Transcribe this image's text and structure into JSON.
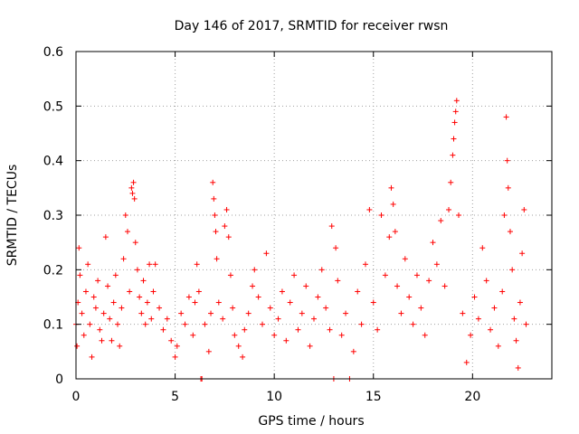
{
  "chart_data": {
    "type": "scatter",
    "title": "Day 146 of 2017, SRMTID for receiver rwsn",
    "xlabel": "GPS time / hours",
    "ylabel": "SRMTID / TECUs",
    "xlim": [
      0,
      24
    ],
    "ylim": [
      0,
      0.6
    ],
    "x_ticks": [
      0,
      5,
      10,
      15,
      20
    ],
    "x_tick_labels": [
      "0",
      "5",
      "10",
      "15",
      "20"
    ],
    "y_ticks": [
      0,
      0.1,
      0.2,
      0.3,
      0.4,
      0.5,
      0.6
    ],
    "y_tick_labels": [
      "0",
      "0.1",
      "0.2",
      "0.3",
      "0.4",
      "0.5",
      "0.6"
    ],
    "grid": true,
    "marker": "+",
    "color": "#ff0000",
    "data_x_range_hours": [
      0,
      22.7
    ],
    "typical_band": [
      0.05,
      0.2
    ],
    "series": [
      {
        "name": "SRMTID",
        "points": [
          [
            0.0,
            0.1
          ],
          [
            0.05,
            0.06
          ],
          [
            0.1,
            0.14
          ],
          [
            0.15,
            0.24
          ],
          [
            0.2,
            0.19
          ],
          [
            0.3,
            0.12
          ],
          [
            0.4,
            0.08
          ],
          [
            0.5,
            0.16
          ],
          [
            0.6,
            0.21
          ],
          [
            0.7,
            0.1
          ],
          [
            0.8,
            0.04
          ],
          [
            0.9,
            0.15
          ],
          [
            1.0,
            0.13
          ],
          [
            1.1,
            0.18
          ],
          [
            1.2,
            0.09
          ],
          [
            1.3,
            0.07
          ],
          [
            1.4,
            0.12
          ],
          [
            1.5,
            0.26
          ],
          [
            1.6,
            0.17
          ],
          [
            1.7,
            0.11
          ],
          [
            1.8,
            0.07
          ],
          [
            1.9,
            0.14
          ],
          [
            2.0,
            0.19
          ],
          [
            2.1,
            0.1
          ],
          [
            2.2,
            0.06
          ],
          [
            2.3,
            0.13
          ],
          [
            2.4,
            0.22
          ],
          [
            2.5,
            0.3
          ],
          [
            2.6,
            0.27
          ],
          [
            2.7,
            0.16
          ],
          [
            2.8,
            0.35
          ],
          [
            2.85,
            0.34
          ],
          [
            2.9,
            0.36
          ],
          [
            2.95,
            0.33
          ],
          [
            3.0,
            0.25
          ],
          [
            3.1,
            0.2
          ],
          [
            3.2,
            0.15
          ],
          [
            3.3,
            0.12
          ],
          [
            3.4,
            0.18
          ],
          [
            3.5,
            0.1
          ],
          [
            3.6,
            0.14
          ],
          [
            3.7,
            0.21
          ],
          [
            3.8,
            0.11
          ],
          [
            3.9,
            0.16
          ],
          [
            4.0,
            0.21
          ],
          [
            4.2,
            0.13
          ],
          [
            4.4,
            0.09
          ],
          [
            4.6,
            0.11
          ],
          [
            4.8,
            0.07
          ],
          [
            5.0,
            0.04
          ],
          [
            5.1,
            0.06
          ],
          [
            5.3,
            0.12
          ],
          [
            5.5,
            0.1
          ],
          [
            5.7,
            0.15
          ],
          [
            5.9,
            0.08
          ],
          [
            6.0,
            0.14
          ],
          [
            6.1,
            0.21
          ],
          [
            6.2,
            0.16
          ],
          [
            6.3,
            0.0
          ],
          [
            6.35,
            0.0
          ],
          [
            6.5,
            0.1
          ],
          [
            6.7,
            0.05
          ],
          [
            6.8,
            0.12
          ],
          [
            6.9,
            0.36
          ],
          [
            6.95,
            0.33
          ],
          [
            7.0,
            0.3
          ],
          [
            7.05,
            0.27
          ],
          [
            7.1,
            0.22
          ],
          [
            7.2,
            0.14
          ],
          [
            7.4,
            0.11
          ],
          [
            7.5,
            0.28
          ],
          [
            7.6,
            0.31
          ],
          [
            7.7,
            0.26
          ],
          [
            7.8,
            0.19
          ],
          [
            7.9,
            0.13
          ],
          [
            8.0,
            0.08
          ],
          [
            8.2,
            0.06
          ],
          [
            8.4,
            0.04
          ],
          [
            8.5,
            0.09
          ],
          [
            8.7,
            0.12
          ],
          [
            8.9,
            0.17
          ],
          [
            9.0,
            0.2
          ],
          [
            9.2,
            0.15
          ],
          [
            9.4,
            0.1
          ],
          [
            9.6,
            0.23
          ],
          [
            9.8,
            0.13
          ],
          [
            10.0,
            0.08
          ],
          [
            10.2,
            0.11
          ],
          [
            10.4,
            0.16
          ],
          [
            10.6,
            0.07
          ],
          [
            10.8,
            0.14
          ],
          [
            11.0,
            0.19
          ],
          [
            11.2,
            0.09
          ],
          [
            11.4,
            0.12
          ],
          [
            11.6,
            0.17
          ],
          [
            11.8,
            0.06
          ],
          [
            12.0,
            0.11
          ],
          [
            12.2,
            0.15
          ],
          [
            12.4,
            0.2
          ],
          [
            12.6,
            0.13
          ],
          [
            12.8,
            0.09
          ],
          [
            12.9,
            0.28
          ],
          [
            13.0,
            0.0
          ],
          [
            13.1,
            0.24
          ],
          [
            13.2,
            0.18
          ],
          [
            13.4,
            0.08
          ],
          [
            13.6,
            0.12
          ],
          [
            13.8,
            0.0
          ],
          [
            14.0,
            0.05
          ],
          [
            14.2,
            0.16
          ],
          [
            14.4,
            0.1
          ],
          [
            14.6,
            0.21
          ],
          [
            14.8,
            0.31
          ],
          [
            15.0,
            0.14
          ],
          [
            15.2,
            0.09
          ],
          [
            15.4,
            0.3
          ],
          [
            15.6,
            0.19
          ],
          [
            15.8,
            0.26
          ],
          [
            15.9,
            0.35
          ],
          [
            16.0,
            0.32
          ],
          [
            16.1,
            0.27
          ],
          [
            16.2,
            0.17
          ],
          [
            16.4,
            0.12
          ],
          [
            16.6,
            0.22
          ],
          [
            16.8,
            0.15
          ],
          [
            17.0,
            0.1
          ],
          [
            17.2,
            0.19
          ],
          [
            17.4,
            0.13
          ],
          [
            17.6,
            0.08
          ],
          [
            17.8,
            0.18
          ],
          [
            18.0,
            0.25
          ],
          [
            18.2,
            0.21
          ],
          [
            18.4,
            0.29
          ],
          [
            18.6,
            0.17
          ],
          [
            18.8,
            0.31
          ],
          [
            18.9,
            0.36
          ],
          [
            19.0,
            0.41
          ],
          [
            19.05,
            0.44
          ],
          [
            19.1,
            0.47
          ],
          [
            19.15,
            0.49
          ],
          [
            19.2,
            0.51
          ],
          [
            19.3,
            0.3
          ],
          [
            19.5,
            0.12
          ],
          [
            19.7,
            0.03
          ],
          [
            19.9,
            0.08
          ],
          [
            20.1,
            0.15
          ],
          [
            20.3,
            0.11
          ],
          [
            20.5,
            0.24
          ],
          [
            20.7,
            0.18
          ],
          [
            20.9,
            0.09
          ],
          [
            21.1,
            0.13
          ],
          [
            21.3,
            0.06
          ],
          [
            21.5,
            0.16
          ],
          [
            21.6,
            0.3
          ],
          [
            21.7,
            0.48
          ],
          [
            21.75,
            0.4
          ],
          [
            21.8,
            0.35
          ],
          [
            21.9,
            0.27
          ],
          [
            22.0,
            0.2
          ],
          [
            22.1,
            0.11
          ],
          [
            22.2,
            0.07
          ],
          [
            22.3,
            0.02
          ],
          [
            22.4,
            0.14
          ],
          [
            22.5,
            0.23
          ],
          [
            22.6,
            0.31
          ],
          [
            22.7,
            0.1
          ]
        ]
      }
    ]
  }
}
